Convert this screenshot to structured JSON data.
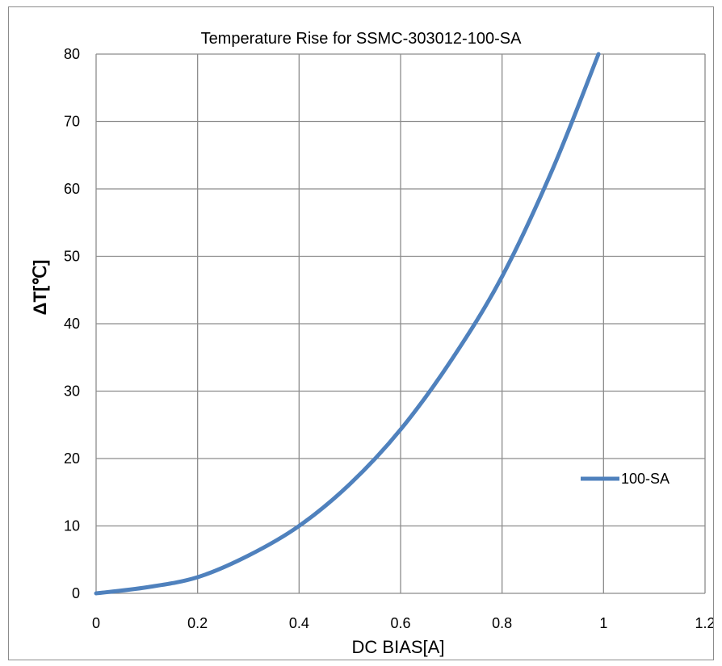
{
  "chart_data": {
    "type": "line",
    "title": "Temperature Rise for SSMC-303012-100-SA",
    "xlabel": "DC BIAS[A]",
    "ylabel": "ΔT[℃]",
    "xlim": [
      0,
      1.2
    ],
    "ylim": [
      0,
      80
    ],
    "x_ticks": [
      "0",
      "0.2",
      "0.4",
      "0.6",
      "0.8",
      "1",
      "1.2"
    ],
    "y_ticks": [
      "0",
      "10",
      "20",
      "30",
      "40",
      "50",
      "60",
      "70",
      "80"
    ],
    "grid": true,
    "legend_position": "right",
    "series": [
      {
        "name": "100-SA",
        "color": "#4f81bd",
        "x": [
          0,
          0.1,
          0.2,
          0.3,
          0.4,
          0.5,
          0.6,
          0.7,
          0.8,
          0.9,
          0.99
        ],
        "y": [
          0,
          0.9,
          2.4,
          5.6,
          10,
          16.2,
          24.3,
          34.6,
          47,
          63,
          80
        ]
      }
    ]
  }
}
